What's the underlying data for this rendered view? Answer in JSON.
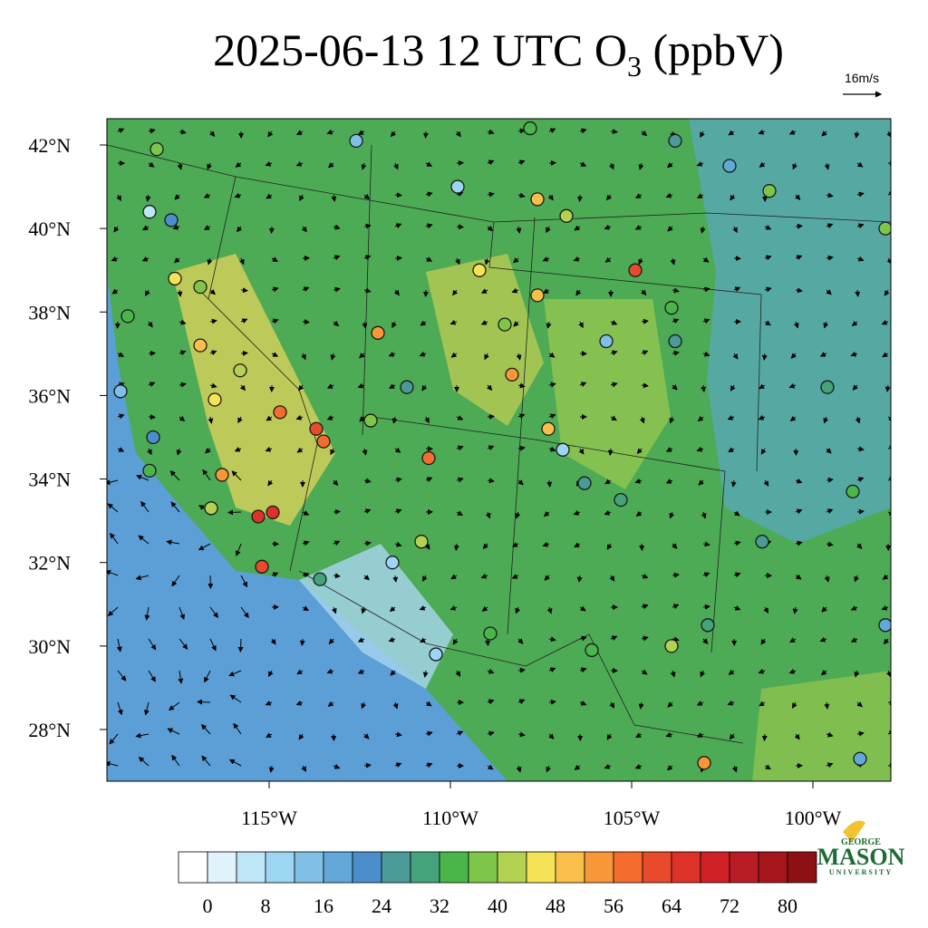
{
  "title": {
    "text": "2025-06-13 12 UTC O",
    "subscript": "3",
    "units": "(ppbV)"
  },
  "wind_reference": "16m/s",
  "map": {
    "lat_ticks": [
      {
        "value": 42,
        "label": "42°N"
      },
      {
        "value": 40,
        "label": "40°N"
      },
      {
        "value": 38,
        "label": "38°N"
      },
      {
        "value": 36,
        "label": "36°N"
      },
      {
        "value": 34,
        "label": "34°N"
      },
      {
        "value": 32,
        "label": "32°N"
      },
      {
        "value": 30,
        "label": "30°N"
      },
      {
        "value": 28,
        "label": "28°N"
      }
    ],
    "lon_ticks": [
      {
        "value": -115,
        "label": "115°W"
      },
      {
        "value": -110,
        "label": "110°W"
      },
      {
        "value": -105,
        "label": "105°W"
      },
      {
        "value": -100,
        "label": "100°W"
      }
    ]
  },
  "colorbar": {
    "range": [
      -4,
      84
    ],
    "ticks": [
      0,
      8,
      16,
      24,
      32,
      40,
      48,
      56,
      64,
      72,
      80
    ],
    "colors": [
      "#ffffff",
      "#e0f3fb",
      "#bfe6f7",
      "#9dd6f2",
      "#80c0e6",
      "#62a8d9",
      "#4a8fcc",
      "#4a9a98",
      "#44a37a",
      "#4ab64a",
      "#7ec64a",
      "#b4d252",
      "#f4e455",
      "#f8c04a",
      "#f7973a",
      "#f46c2e",
      "#e84a2c",
      "#dc3228",
      "#cf2026",
      "#b81c24",
      "#a4161c",
      "#8c1014"
    ]
  },
  "stations": [
    {
      "lon": -118.1,
      "lat": 41.9,
      "value": 36
    },
    {
      "lon": -112.6,
      "lat": 42.1,
      "value": 14
    },
    {
      "lon": -107.8,
      "lat": 42.4,
      "value": 33
    },
    {
      "lon": -103.8,
      "lat": 42.1,
      "value": 26
    },
    {
      "lon": -101.2,
      "lat": 40.9,
      "value": 36
    },
    {
      "lon": -102.3,
      "lat": 41.5,
      "value": 16
    },
    {
      "lon": -109.8,
      "lat": 41.0,
      "value": 8
    },
    {
      "lon": -107.6,
      "lat": 40.7,
      "value": 48
    },
    {
      "lon": -104.9,
      "lat": 39.0,
      "value": 60
    },
    {
      "lon": -106.8,
      "lat": 40.3,
      "value": 42
    },
    {
      "lon": -118.3,
      "lat": 40.4,
      "value": 4
    },
    {
      "lon": -117.7,
      "lat": 40.2,
      "value": 22
    },
    {
      "lon": -116.9,
      "lat": 38.6,
      "value": 36
    },
    {
      "lon": -117.6,
      "lat": 38.8,
      "value": 44
    },
    {
      "lon": -118.9,
      "lat": 37.9,
      "value": 34
    },
    {
      "lon": -116.9,
      "lat": 37.2,
      "value": 48
    },
    {
      "lon": -115.8,
      "lat": 36.6,
      "value": 42
    },
    {
      "lon": -116.5,
      "lat": 35.9,
      "value": 46
    },
    {
      "lon": -114.7,
      "lat": 35.6,
      "value": 56
    },
    {
      "lon": -113.7,
      "lat": 35.2,
      "value": 62
    },
    {
      "lon": -113.5,
      "lat": 34.9,
      "value": 58
    },
    {
      "lon": -112.0,
      "lat": 37.5,
      "value": 54
    },
    {
      "lon": -110.6,
      "lat": 34.5,
      "value": 58
    },
    {
      "lon": -111.2,
      "lat": 36.2,
      "value": 24
    },
    {
      "lon": -112.2,
      "lat": 35.4,
      "value": 36
    },
    {
      "lon": -115.3,
      "lat": 33.1,
      "value": 64
    },
    {
      "lon": -114.9,
      "lat": 33.2,
      "value": 64
    },
    {
      "lon": -115.2,
      "lat": 31.9,
      "value": 62
    },
    {
      "lon": -116.3,
      "lat": 34.1,
      "value": 52
    },
    {
      "lon": -116.6,
      "lat": 33.3,
      "value": 42
    },
    {
      "lon": -118.3,
      "lat": 34.2,
      "value": 32
    },
    {
      "lon": -119.1,
      "lat": 36.1,
      "value": 14
    },
    {
      "lon": -118.2,
      "lat": 35.0,
      "value": 22
    },
    {
      "lon": -113.6,
      "lat": 31.6,
      "value": 30
    },
    {
      "lon": -110.8,
      "lat": 32.5,
      "value": 42
    },
    {
      "lon": -111.6,
      "lat": 32.0,
      "value": 10
    },
    {
      "lon": -110.4,
      "lat": 29.8,
      "value": 8
    },
    {
      "lon": -108.9,
      "lat": 30.3,
      "value": 34
    },
    {
      "lon": -108.3,
      "lat": 36.5,
      "value": 54
    },
    {
      "lon": -107.3,
      "lat": 35.2,
      "value": 48
    },
    {
      "lon": -106.9,
      "lat": 34.7,
      "value": 8
    },
    {
      "lon": -106.3,
      "lat": 33.9,
      "value": 24
    },
    {
      "lon": -105.3,
      "lat": 33.5,
      "value": 30
    },
    {
      "lon": -106.1,
      "lat": 29.9,
      "value": 34
    },
    {
      "lon": -103.9,
      "lat": 30.0,
      "value": 42
    },
    {
      "lon": -103.0,
      "lat": 27.2,
      "value": 54
    },
    {
      "lon": -99.6,
      "lat": 36.2,
      "value": 30
    },
    {
      "lon": -98.9,
      "lat": 33.7,
      "value": 34
    },
    {
      "lon": -101.4,
      "lat": 32.5,
      "value": 24
    },
    {
      "lon": -103.9,
      "lat": 38.1,
      "value": 34
    },
    {
      "lon": -103.8,
      "lat": 37.3,
      "value": 24
    },
    {
      "lon": -105.7,
      "lat": 37.3,
      "value": 14
    },
    {
      "lon": -107.6,
      "lat": 38.4,
      "value": 48
    },
    {
      "lon": -108.5,
      "lat": 37.7,
      "value": 36
    },
    {
      "lon": -109.2,
      "lat": 39.0,
      "value": 44
    },
    {
      "lon": -98.0,
      "lat": 40.0,
      "value": 36
    },
    {
      "lon": -98.7,
      "lat": 27.3,
      "value": 16
    },
    {
      "lon": -98.0,
      "lat": 30.5,
      "value": 18
    },
    {
      "lon": -102.9,
      "lat": 30.5,
      "value": 30
    }
  ],
  "logo": {
    "top": "GEORGE",
    "name": "MASON",
    "bottom": "UNIVERSITY"
  }
}
